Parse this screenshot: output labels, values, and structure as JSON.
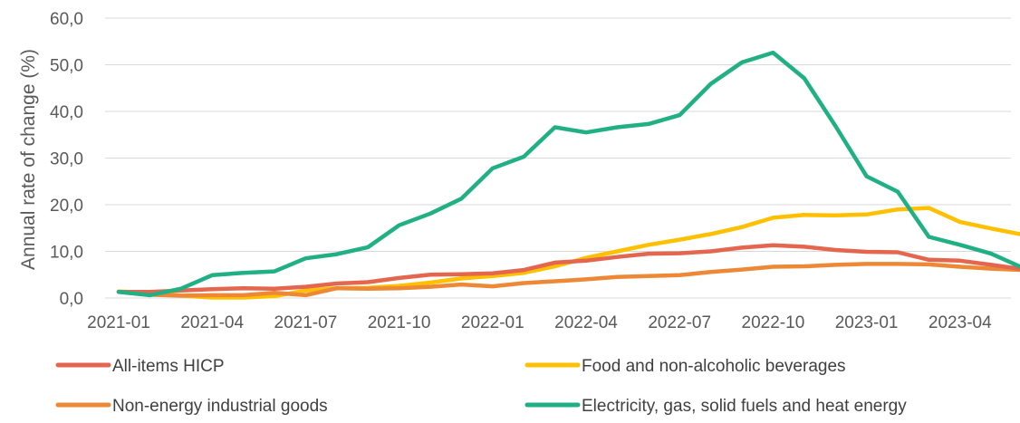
{
  "chart_data": {
    "type": "line",
    "title": "",
    "xlabel": "",
    "ylabel": "Annual rate of change (%)",
    "ylim": [
      0,
      60
    ],
    "yticks": [
      "0,0",
      "10,0",
      "20,0",
      "30,0",
      "40,0",
      "50,0",
      "60,0"
    ],
    "xtick_labels": [
      "2021-01",
      "2021-04",
      "2021-07",
      "2021-10",
      "2022-01",
      "2022-04",
      "2022-07",
      "2022-10",
      "2023-01",
      "2023-04"
    ],
    "x": [
      "2021-01",
      "2021-02",
      "2021-03",
      "2021-04",
      "2021-05",
      "2021-06",
      "2021-07",
      "2021-08",
      "2021-09",
      "2021-10",
      "2021-11",
      "2021-12",
      "2022-01",
      "2022-02",
      "2022-03",
      "2022-04",
      "2022-05",
      "2022-06",
      "2022-07",
      "2022-08",
      "2022-09",
      "2022-10",
      "2022-11",
      "2022-12",
      "2023-01",
      "2023-02",
      "2023-03",
      "2023-04",
      "2023-05",
      "2023-06"
    ],
    "grid": true,
    "legend_position": "bottom",
    "series": [
      {
        "name": "All-items HICP",
        "color": "#e4664f",
        "values": [
          1.3,
          1.3,
          1.6,
          1.9,
          2.1,
          2.0,
          2.4,
          3.1,
          3.4,
          4.3,
          5.0,
          5.1,
          5.3,
          6.0,
          7.6,
          8.0,
          8.8,
          9.5,
          9.6,
          10.0,
          10.8,
          11.3,
          11.0,
          10.3,
          9.9,
          9.8,
          8.2,
          8.0,
          7.1,
          6.2
        ]
      },
      {
        "name": "Food and non-alcoholic beverages",
        "color": "#ffc000",
        "values": [
          1.4,
          1.1,
          0.5,
          0.1,
          0.1,
          0.4,
          1.6,
          2.1,
          2.2,
          2.6,
          3.3,
          4.2,
          4.7,
          5.4,
          6.8,
          8.6,
          10.0,
          11.4,
          12.5,
          13.7,
          15.2,
          17.2,
          17.8,
          17.7,
          17.9,
          19.0,
          19.3,
          16.3,
          14.9,
          13.6
        ]
      },
      {
        "name": "Non-energy industrial goods",
        "color": "#ed8936",
        "values": [
          1.3,
          0.7,
          0.5,
          0.6,
          0.6,
          1.1,
          0.6,
          2.1,
          2.0,
          2.1,
          2.4,
          2.9,
          2.5,
          3.2,
          3.6,
          4.0,
          4.5,
          4.7,
          4.9,
          5.6,
          6.1,
          6.7,
          6.8,
          7.1,
          7.3,
          7.3,
          7.2,
          6.7,
          6.3,
          6.0
        ]
      },
      {
        "name": "Electricity, gas, solid fuels and heat energy",
        "color": "#21b083",
        "values": [
          1.3,
          0.6,
          2.0,
          4.9,
          5.4,
          5.7,
          8.5,
          9.4,
          10.9,
          15.6,
          18.1,
          21.3,
          27.8,
          30.3,
          36.6,
          35.5,
          36.6,
          37.3,
          39.2,
          45.9,
          50.5,
          52.6,
          47.1,
          36.9,
          26.1,
          22.8,
          13.1,
          11.4,
          9.5,
          6.5
        ]
      }
    ]
  }
}
